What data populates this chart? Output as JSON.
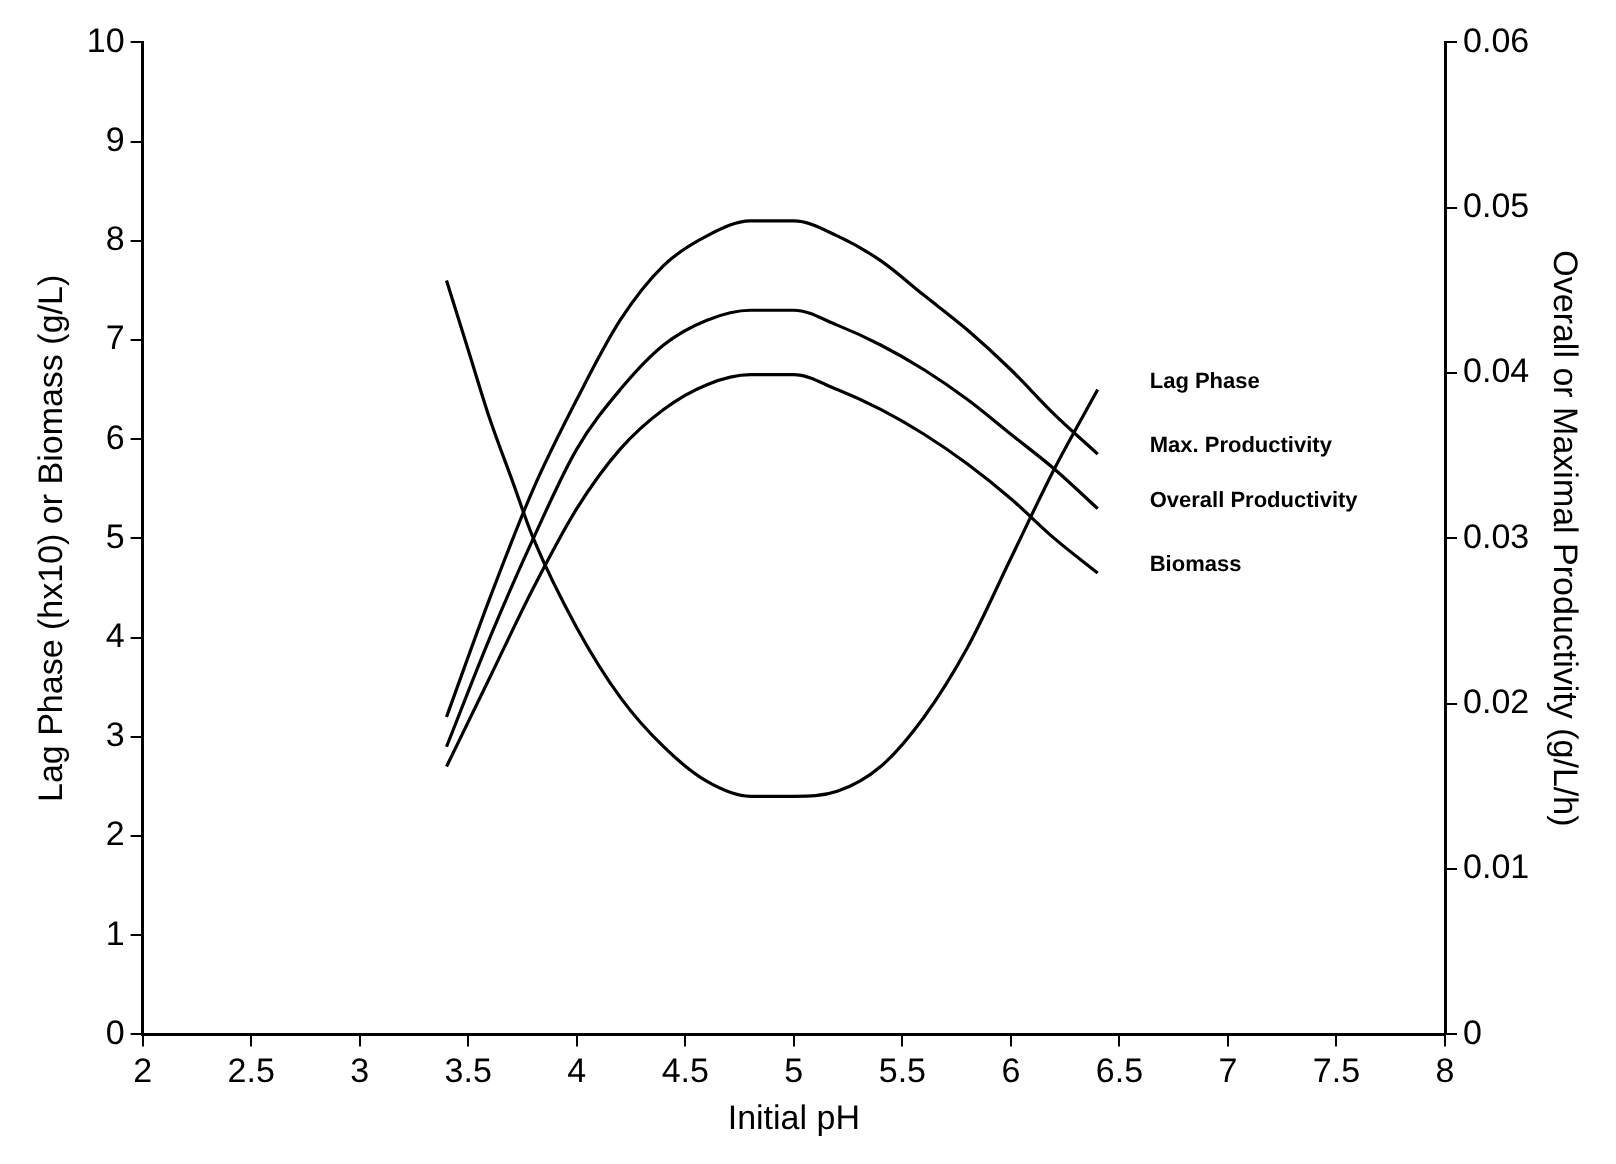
{
  "chart_data": {
    "type": "line",
    "xlabel": "Initial pH",
    "ylabel": "Lag Phase (hx10) or Biomass (g/L)",
    "y2label": "Overall or Maximal Productivity (g/L/h)",
    "xlim": [
      2,
      8
    ],
    "xticks": [
      2,
      2.5,
      3,
      3.5,
      4,
      4.5,
      5,
      5.5,
      6,
      6.5,
      7,
      7.5,
      8
    ],
    "ylim": [
      0,
      10
    ],
    "yticks": [
      0,
      1,
      2,
      3,
      4,
      5,
      6,
      7,
      8,
      9,
      10
    ],
    "y2lim": [
      0,
      0.06
    ],
    "y2ticks": [
      0,
      0.01,
      0.02,
      0.03,
      0.04,
      0.05,
      0.06
    ],
    "grid": false,
    "legend": false,
    "marker": "none",
    "line_style": "solid",
    "series": [
      {
        "name": "Lag Phase",
        "color": "#000000",
        "x": [
          3.4,
          3.5,
          3.6,
          3.7,
          3.8,
          4.0,
          4.2,
          4.4,
          4.6,
          4.8,
          5.0,
          5.2,
          5.4,
          5.6,
          5.8,
          6.0,
          6.2,
          6.4
        ],
        "values": [
          7.6,
          6.9,
          6.2,
          5.6,
          5.0,
          4.1,
          3.4,
          2.9,
          2.55,
          2.4,
          2.4,
          2.45,
          2.7,
          3.2,
          3.9,
          4.8,
          5.7,
          6.5
        ]
      },
      {
        "name": "Max. Productivity",
        "color": "#000000",
        "axis": "y2",
        "x": [
          3.4,
          3.6,
          3.8,
          4.0,
          4.2,
          4.4,
          4.6,
          4.8,
          5.0,
          5.2,
          5.4,
          5.6,
          5.8,
          6.0,
          6.2,
          6.4
        ],
        "values": [
          0.0192,
          0.0264,
          0.033,
          0.0384,
          0.0432,
          0.0465,
          0.0483,
          0.0492,
          0.0492,
          0.0483,
          0.0468,
          0.0447,
          0.0426,
          0.0402,
          0.0375,
          0.0351
        ]
      },
      {
        "name": "Overall Productivity",
        "color": "#000000",
        "axis": "y2",
        "x": [
          3.4,
          3.6,
          3.8,
          4.0,
          4.2,
          4.4,
          4.6,
          4.8,
          5.0,
          5.2,
          5.4,
          5.6,
          5.8,
          6.0,
          6.2,
          6.4
        ],
        "values": [
          0.0174,
          0.024,
          0.03,
          0.0354,
          0.039,
          0.0417,
          0.0432,
          0.0438,
          0.0438,
          0.0429,
          0.0417,
          0.0402,
          0.0384,
          0.0363,
          0.0342,
          0.0318
        ]
      },
      {
        "name": "Biomass",
        "color": "#000000",
        "x": [
          3.4,
          3.6,
          3.8,
          4.0,
          4.2,
          4.4,
          4.6,
          4.8,
          5.0,
          5.2,
          5.4,
          5.6,
          5.8,
          6.0,
          6.2,
          6.4
        ],
        "values": [
          2.7,
          3.6,
          4.5,
          5.3,
          5.9,
          6.3,
          6.55,
          6.65,
          6.65,
          6.5,
          6.3,
          6.05,
          5.75,
          5.4,
          5.0,
          4.65
        ]
      }
    ]
  }
}
